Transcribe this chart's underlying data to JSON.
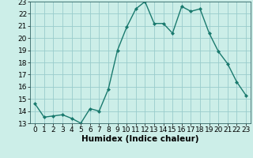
{
  "x": [
    0,
    1,
    2,
    3,
    4,
    5,
    6,
    7,
    8,
    9,
    10,
    11,
    12,
    13,
    14,
    15,
    16,
    17,
    18,
    19,
    20,
    21,
    22,
    23
  ],
  "y": [
    14.6,
    13.5,
    13.6,
    13.7,
    13.4,
    13.0,
    14.2,
    14.0,
    15.8,
    19.0,
    20.9,
    22.4,
    23.0,
    21.2,
    21.2,
    20.4,
    22.6,
    22.2,
    22.4,
    20.4,
    18.9,
    17.9,
    16.4,
    15.3
  ],
  "line_color": "#1a7a6e",
  "marker": "D",
  "marker_size": 2.0,
  "linewidth": 1.0,
  "xlabel": "Humidex (Indice chaleur)",
  "xlabel_fontsize": 7.5,
  "xlim": [
    -0.5,
    23.5
  ],
  "ylim": [
    13,
    23
  ],
  "yticks": [
    13,
    14,
    15,
    16,
    17,
    18,
    19,
    20,
    21,
    22,
    23
  ],
  "xticks": [
    0,
    1,
    2,
    3,
    4,
    5,
    6,
    7,
    8,
    9,
    10,
    11,
    12,
    13,
    14,
    15,
    16,
    17,
    18,
    19,
    20,
    21,
    22,
    23
  ],
  "background_color": "#cceee8",
  "grid_color": "#99cccc",
  "tick_fontsize": 6.5,
  "fig_width": 3.2,
  "fig_height": 2.0,
  "dpi": 100
}
